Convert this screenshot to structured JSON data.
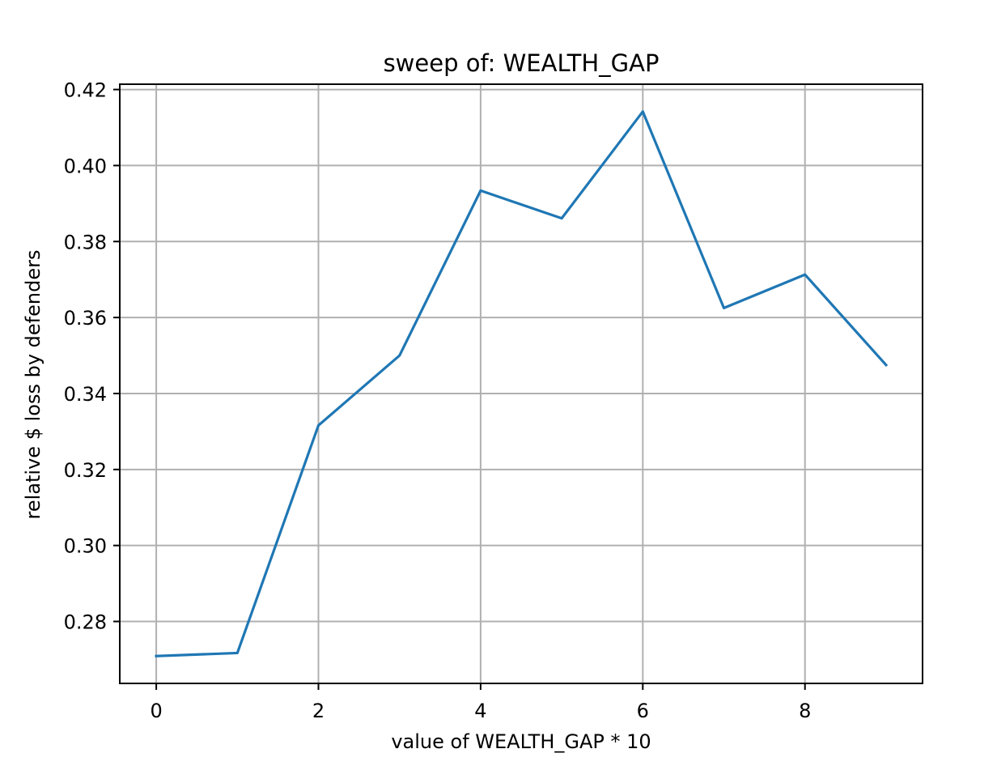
{
  "chart_data": {
    "type": "line",
    "title": "sweep of: WEALTH_GAP",
    "xlabel": "value of WEALTH_GAP * 10",
    "ylabel": "relative $ loss by defenders",
    "x": [
      0,
      1,
      2,
      3,
      4,
      5,
      6,
      7,
      8,
      9
    ],
    "series": [
      {
        "values": [
          0.2709,
          0.2717,
          0.3316,
          0.35,
          0.3934,
          0.3861,
          0.4142,
          0.3625,
          0.3713,
          0.3475
        ],
        "color": "#1f77b4"
      }
    ],
    "xlim": [
      -0.45,
      9.45
    ],
    "ylim": [
      0.2637,
      0.4214
    ],
    "xticks": [
      0,
      2,
      4,
      6,
      8
    ],
    "xtick_labels": [
      "0",
      "2",
      "4",
      "6",
      "8"
    ],
    "yticks": [
      0.28,
      0.3,
      0.32,
      0.34,
      0.36,
      0.38,
      0.4,
      0.42
    ],
    "ytick_labels": [
      "0.28",
      "0.30",
      "0.32",
      "0.34",
      "0.36",
      "0.38",
      "0.40",
      "0.42"
    ],
    "grid": true,
    "legend": false
  }
}
